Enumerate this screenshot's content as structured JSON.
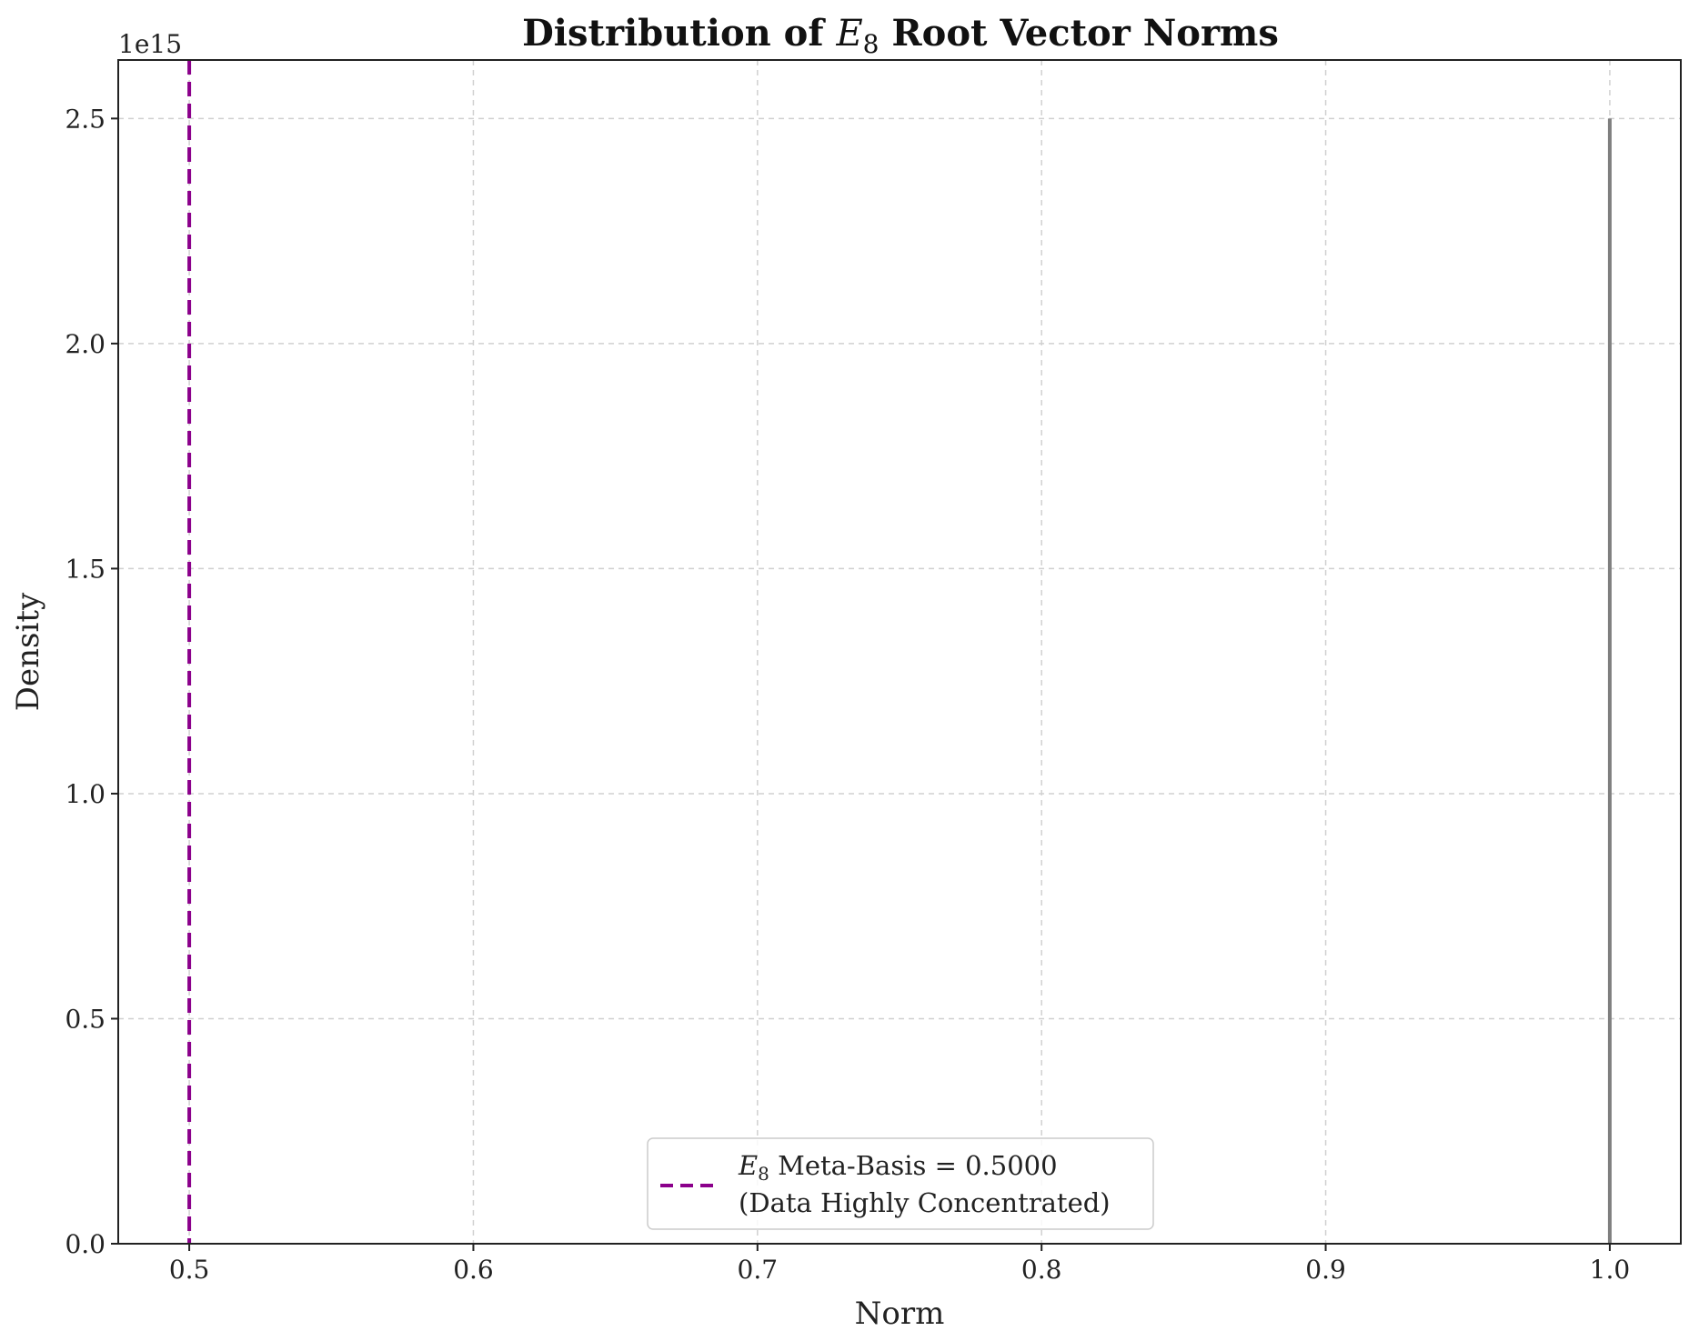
{
  "chart_data": {
    "type": "bar",
    "title": {
      "prefix": "Distribution of ",
      "symbol": "E",
      "subscript": "8",
      "suffix": " Root Vector Norms"
    },
    "xlabel": "Norm",
    "ylabel": "Density",
    "y_offset_label": "1e15",
    "xlim": [
      0.475,
      1.025
    ],
    "ylim": [
      0,
      2.63
    ],
    "y_scale_multiplier": 1000000000000000.0,
    "x_ticks": [
      0.5,
      0.6,
      0.7,
      0.8,
      0.9,
      1.0
    ],
    "x_tick_labels": [
      "0.5",
      "0.6",
      "0.7",
      "0.8",
      "0.9",
      "1.0"
    ],
    "y_ticks": [
      0.0,
      0.5,
      1.0,
      1.5,
      2.0,
      2.5
    ],
    "y_tick_labels": [
      "0.0",
      "0.5",
      "1.0",
      "1.5",
      "2.0",
      "2.5"
    ],
    "grid": true,
    "legend_position": "bottom-center",
    "series": [
      {
        "kind": "histogram",
        "bins": [
          {
            "x": 1.0,
            "y": 2.5
          }
        ],
        "color": "#7f7f7f"
      }
    ],
    "reference_lines": [
      {
        "orientation": "vertical",
        "x": 0.5,
        "style": "dashed",
        "color": "#8b008b",
        "legend_symbol": "E",
        "legend_subscript": "8",
        "legend_text_line1": " Meta-Basis = 0.5000",
        "legend_text_line2": "(Data Highly Concentrated)"
      }
    ]
  }
}
